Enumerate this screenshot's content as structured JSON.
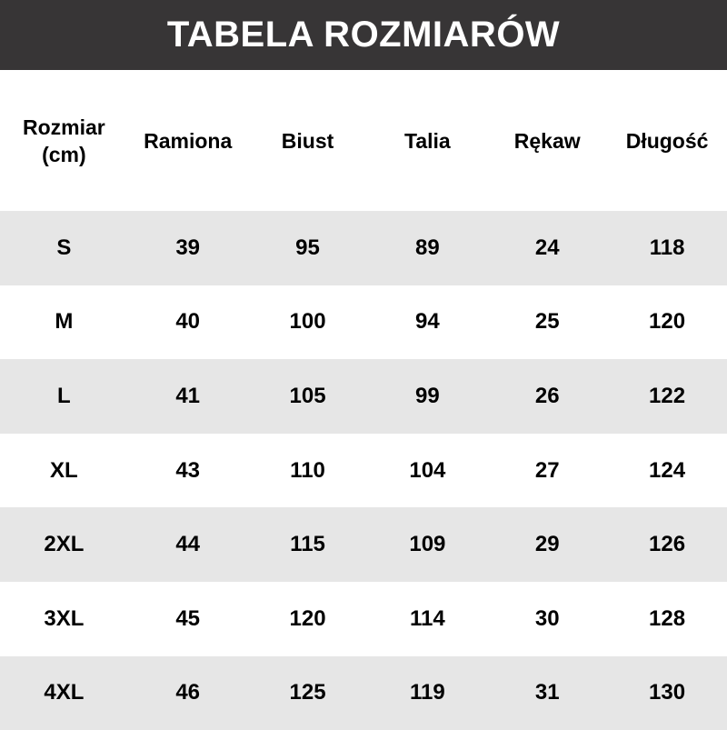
{
  "title": "TABELA ROZMIARÓW",
  "headers": [
    "Rozmiar\n(cm)",
    "Ramiona",
    "Biust",
    "Talia",
    "Rękaw",
    "Długość"
  ],
  "header_first_lines": [
    "Rozmiar",
    "(cm)"
  ],
  "rows": [
    [
      "S",
      "39",
      "95",
      "89",
      "24",
      "118"
    ],
    [
      "M",
      "40",
      "100",
      "94",
      "25",
      "120"
    ],
    [
      "L",
      "41",
      "105",
      "99",
      "26",
      "122"
    ],
    [
      "XL",
      "43",
      "110",
      "104",
      "27",
      "124"
    ],
    [
      "2XL",
      "44",
      "115",
      "109",
      "29",
      "126"
    ],
    [
      "3XL",
      "45",
      "120",
      "114",
      "30",
      "128"
    ],
    [
      "4XL",
      "46",
      "125",
      "119",
      "31",
      "130"
    ]
  ],
  "colors": {
    "title_bg": "#373536",
    "stripe": "#e6e6e6"
  }
}
